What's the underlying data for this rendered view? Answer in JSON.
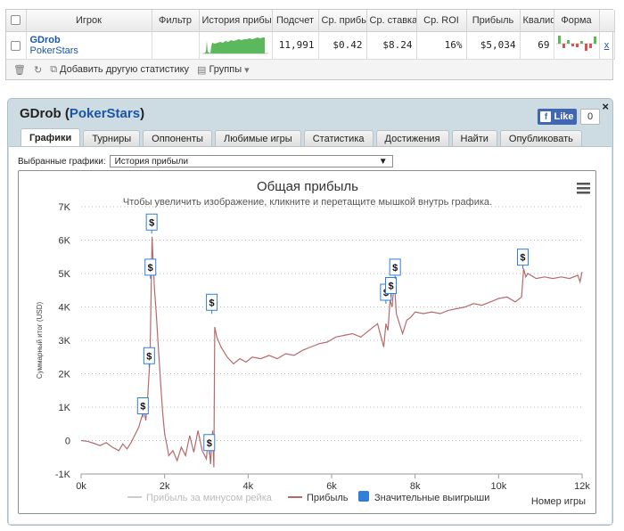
{
  "stats": {
    "headers": [
      "Игрок",
      "Фильтр",
      "История прибы",
      "Подсчет",
      "Ср. прибы",
      "Ср. ставка",
      "Ср. ROI",
      "Прибыль",
      "Квалиф",
      "Форма"
    ],
    "row": {
      "player": "GDrob",
      "site": "PokerStars",
      "filter": "",
      "hands": "11,991",
      "avg_profit": "$0.42",
      "avg_stake": "$8.24",
      "avg_roi": "16%",
      "profit": "$5,034",
      "ability": "69",
      "remove": "x"
    },
    "footer": {
      "add_stats": "Добавить другую статистику",
      "groups": "Группы"
    }
  },
  "panel": {
    "player": "GDrob",
    "site": "PokerStars",
    "like_label": "Like",
    "like_count": "0",
    "close": "×",
    "tabs": [
      "Графики",
      "Турниры",
      "Оппоненты",
      "Любимые игры",
      "Статистика",
      "Достижения",
      "Найти",
      "Опубликовать"
    ],
    "active_tab": 0,
    "select_label": "Выбранные графики:",
    "select_value": "История прибыли"
  },
  "colors": {
    "profit_line": "#b86a6a",
    "rake_line": "#cccccc",
    "big_wins": "#2f7ed8",
    "grid": "#bbbbbb"
  },
  "chart_data": {
    "type": "line",
    "title": "Общая прибыль",
    "subtitle": "Чтобы увеличить изображение, кликните и перетащите мышкой внутрь графика.",
    "ylabel": "Суммарный итог (USD)",
    "xlabel": "Номер игры",
    "xlim": [
      0,
      12000
    ],
    "ylim": [
      -1000,
      7000
    ],
    "x_ticks": [
      "0k",
      "2k",
      "4k",
      "6k",
      "8k",
      "10k",
      "12k"
    ],
    "y_ticks": [
      "7K",
      "6K",
      "5K",
      "4K",
      "3K",
      "2K",
      "1K",
      "0",
      "-1K"
    ],
    "grid": true,
    "legend_position": "bottom",
    "series": [
      {
        "name": "Прибыль за минусом рейка",
        "visible": false,
        "values": []
      },
      {
        "name": "Прибыль",
        "x": [
          0,
          150,
          300,
          450,
          600,
          750,
          900,
          1000,
          1100,
          1200,
          1300,
          1380,
          1450,
          1500,
          1550,
          1600,
          1650,
          1700,
          1730,
          1760,
          1800,
          1850,
          1900,
          1950,
          2000,
          2050,
          2100,
          2200,
          2300,
          2400,
          2500,
          2600,
          2700,
          2800,
          2900,
          3000,
          3050,
          3100,
          3150,
          3180,
          3200,
          3250,
          3350,
          3500,
          3650,
          3800,
          3950,
          4100,
          4300,
          4500,
          4700,
          4900,
          5100,
          5300,
          5500,
          5700,
          5900,
          6100,
          6300,
          6500,
          6700,
          6900,
          7100,
          7250,
          7300,
          7350,
          7400,
          7450,
          7500,
          7550,
          7600,
          7700,
          7800,
          7900,
          8000,
          8200,
          8400,
          8600,
          8800,
          9000,
          9200,
          9400,
          9600,
          9800,
          10000,
          10200,
          10400,
          10550,
          10600,
          10650,
          10700,
          10900,
          11100,
          11300,
          11500,
          11700,
          11900,
          11950,
          12000
        ],
        "values": [
          0,
          -20,
          -80,
          -150,
          -60,
          -200,
          -300,
          -100,
          -250,
          -50,
          200,
          400,
          700,
          900,
          600,
          1400,
          2500,
          6100,
          5200,
          4500,
          3800,
          2800,
          1800,
          900,
          200,
          -100,
          -450,
          -300,
          -600,
          -200,
          -450,
          150,
          -350,
          300,
          -300,
          -550,
          100,
          -700,
          300,
          -800,
          3400,
          3100,
          2800,
          2500,
          2300,
          2450,
          2350,
          2500,
          2450,
          2550,
          2450,
          2600,
          2550,
          2700,
          2800,
          2900,
          2950,
          3100,
          3150,
          3200,
          3100,
          3300,
          3500,
          2800,
          3500,
          3300,
          4200,
          4000,
          4800,
          3800,
          3600,
          3200,
          3600,
          3700,
          3850,
          3800,
          3850,
          3800,
          3900,
          3950,
          4000,
          4100,
          4050,
          4150,
          4250,
          4300,
          4150,
          4300,
          5150,
          4900,
          5000,
          4850,
          4900,
          4850,
          4900,
          4850,
          4950,
          4750,
          5050
        ]
      },
      {
        "name": "Значительные выигрыши",
        "type": "flags",
        "label": "$",
        "x": [
          1480,
          1630,
          1660,
          1690,
          3070,
          3130,
          7300,
          7420,
          7520,
          10580
        ],
        "values": [
          800,
          2300,
          4950,
          6300,
          -300,
          3900,
          4200,
          4400,
          4950,
          5250
        ]
      }
    ]
  }
}
